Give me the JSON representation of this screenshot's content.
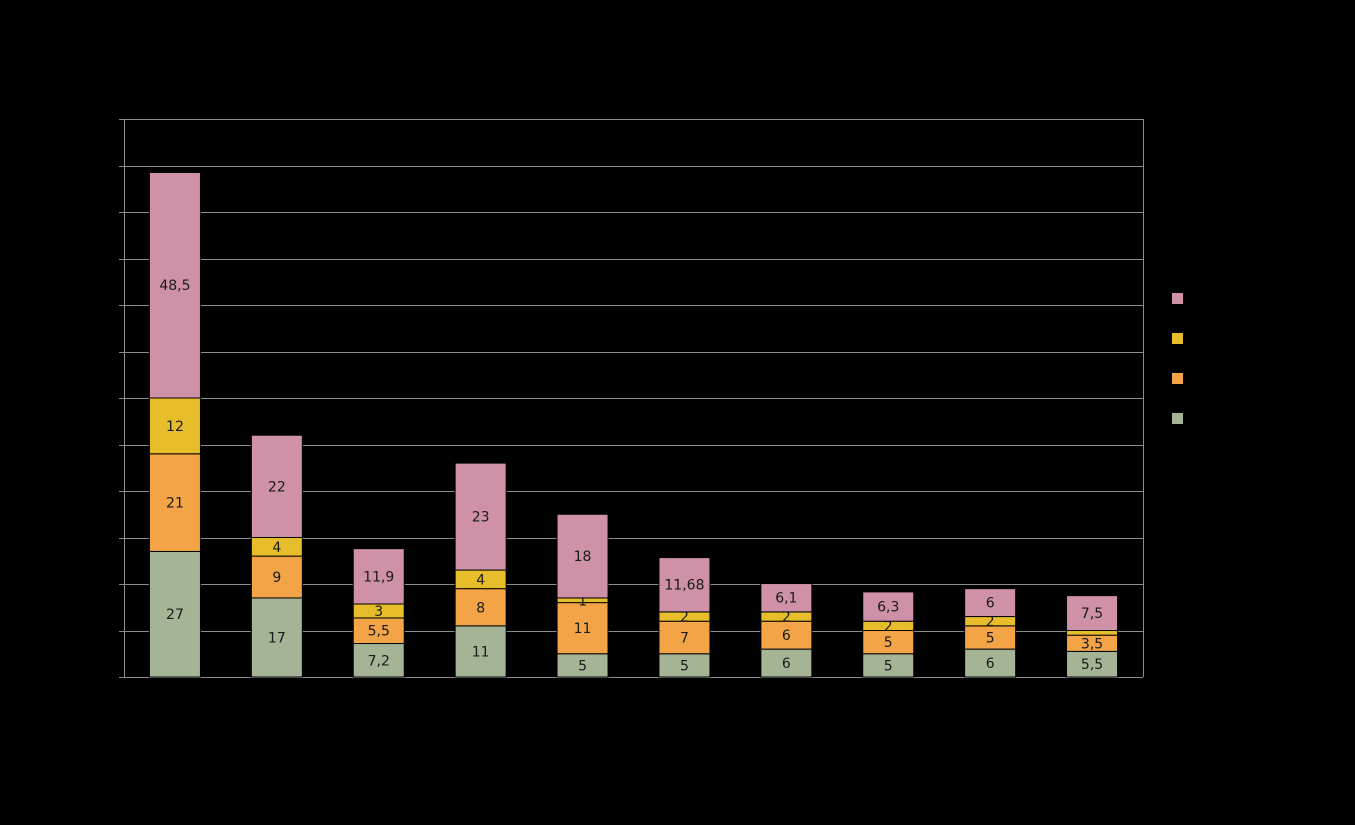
{
  "chart_data": {
    "type": "bar",
    "stacked": true,
    "title": "",
    "xlabel": "",
    "ylabel": "",
    "ylim": [
      0,
      120
    ],
    "y_gridline_step": 10,
    "grid": true,
    "legend_position": "right",
    "categories": [
      "",
      "",
      "",
      "",
      "",
      "",
      "",
      "",
      "",
      ""
    ],
    "series": [
      {
        "color": "#a4b494",
        "values": [
          27,
          17,
          7.2,
          11,
          5,
          5,
          6,
          5,
          6,
          5.5
        ],
        "labels": [
          "27",
          "17",
          "7,2",
          "11",
          "5",
          "5",
          "6",
          "5",
          "6",
          "5,5"
        ]
      },
      {
        "color": "#f2a447",
        "values": [
          21,
          9,
          5.5,
          8,
          11,
          7,
          6,
          5,
          5,
          3.5
        ],
        "labels": [
          "21",
          "9",
          "5,5",
          "8",
          "11",
          "7",
          "6",
          "5",
          "5",
          "3,5"
        ]
      },
      {
        "color": "#e8bd2b",
        "values": [
          12,
          4,
          3,
          4,
          1,
          2,
          2,
          2,
          2,
          1
        ],
        "labels": [
          "12",
          "4",
          "3",
          "4",
          "1",
          "2",
          "2",
          "2",
          "2",
          ""
        ]
      },
      {
        "color": "#cf91a8",
        "values": [
          48.5,
          22,
          11.9,
          23,
          18,
          11.68,
          6.1,
          6.3,
          6,
          7.5
        ],
        "labels": [
          "48,5",
          "22",
          "11,9",
          "23",
          "18",
          "11,68",
          "6,1",
          "6,3",
          "6",
          "7,5"
        ]
      }
    ],
    "legend_order": [
      3,
      2,
      1,
      0
    ],
    "colors": {
      "background": "#000000",
      "grid": "#8c8c8c",
      "axis": "#8c8c8c",
      "segment_border": "#000000",
      "label": "#1a1a1a"
    }
  }
}
